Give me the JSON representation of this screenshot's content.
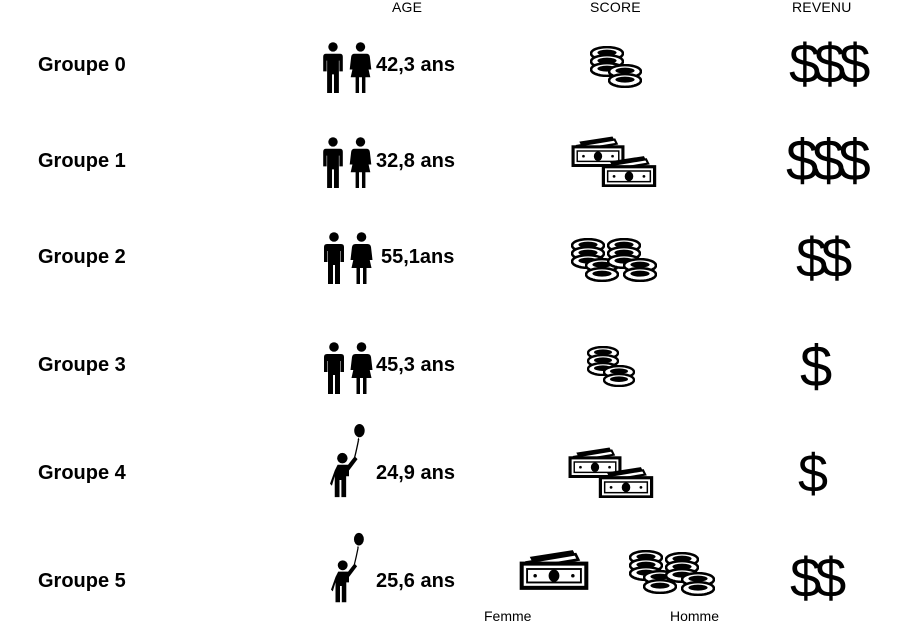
{
  "headers": {
    "age": "AGE",
    "score": "SCORE",
    "revenu": "REVENU"
  },
  "groups": [
    {
      "label": "Groupe 0",
      "age": "42,3 ans",
      "people_icon": "man-woman-icon",
      "score_icon": "small-coin-stack-icon",
      "revenu": "$$$"
    },
    {
      "label": "Groupe 1",
      "age": "32,8 ans",
      "people_icon": "man-woman-icon",
      "score_icon": "banknotes-icon",
      "revenu": "$$$"
    },
    {
      "label": "Groupe 2",
      "age": "55,1ans",
      "people_icon": "man-woman-icon",
      "score_icon": "large-coin-stack-icon",
      "revenu": "$$"
    },
    {
      "label": "Groupe 3",
      "age": "45,3 ans",
      "people_icon": "man-woman-icon",
      "score_icon": "small-coin-stack-icon",
      "revenu": "$"
    },
    {
      "label": "Groupe 4",
      "age": "24,9 ans",
      "people_icon": "child-balloon-icon",
      "score_icon": "banknotes-icon",
      "revenu": "$"
    },
    {
      "label": "Groupe 5",
      "age": "25,6 ans",
      "people_icon": "child-balloon-icon",
      "score_icon": "banknote-and-coins-icon",
      "revenu": "$$"
    }
  ],
  "footer": {
    "femme": "Femme",
    "homme": "Homme"
  }
}
